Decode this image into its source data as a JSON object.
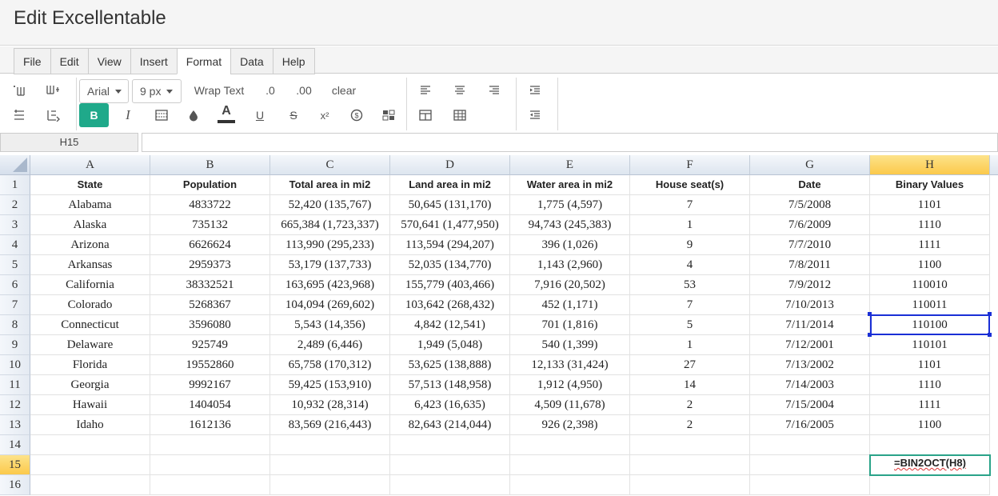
{
  "app": {
    "title": "Edit Excellentable"
  },
  "menu": {
    "items": [
      {
        "label": "File",
        "active": false
      },
      {
        "label": "Edit",
        "active": false
      },
      {
        "label": "View",
        "active": false
      },
      {
        "label": "Insert",
        "active": false
      },
      {
        "label": "Format",
        "active": true
      },
      {
        "label": "Data",
        "active": false
      },
      {
        "label": "Help",
        "active": false
      }
    ]
  },
  "toolbar": {
    "font_family": "Arial",
    "font_size": "9 px",
    "wrap_text": "Wrap Text",
    "decrease_decimal": ".0",
    "increase_decimal": ".00",
    "clear": "clear",
    "bold": "B",
    "italic": "I",
    "underline": "U",
    "strike": "S",
    "superscript": "x²",
    "accent_color": "#1fa98a"
  },
  "formula_bar": {
    "cell_ref": "H15",
    "value": ""
  },
  "sheet": {
    "columns": [
      "A",
      "B",
      "C",
      "D",
      "E",
      "F",
      "G",
      "H"
    ],
    "rows": [
      "1",
      "2",
      "3",
      "4",
      "5",
      "6",
      "7",
      "8",
      "9",
      "10",
      "11",
      "12",
      "13",
      "14",
      "15",
      "16"
    ],
    "selected_column": "H",
    "selected_row": "15",
    "data": [
      [
        "State",
        "Population",
        "Total area in mi2",
        "Land area in mi2",
        "Water area in mi2",
        "House seat(s)",
        "Date",
        "Binary Values"
      ],
      [
        "Alabama",
        "4833722",
        "52,420 (135,767)",
        "50,645 (131,170)",
        "1,775 (4,597)",
        "7",
        "7/5/2008",
        "1101"
      ],
      [
        "Alaska",
        "735132",
        "665,384 (1,723,337)",
        "570,641 (1,477,950)",
        "94,743 (245,383)",
        "1",
        "7/6/2009",
        "1110"
      ],
      [
        "Arizona",
        "6626624",
        "113,990 (295,233)",
        "113,594 (294,207)",
        "396 (1,026)",
        "9",
        "7/7/2010",
        "1111"
      ],
      [
        "Arkansas",
        "2959373",
        "53,179 (137,733)",
        "52,035 (134,770)",
        "1,143 (2,960)",
        "4",
        "7/8/2011",
        "1100"
      ],
      [
        "California",
        "38332521",
        "163,695 (423,968)",
        "155,779 (403,466)",
        "7,916 (20,502)",
        "53",
        "7/9/2012",
        "110010"
      ],
      [
        "Colorado",
        "5268367",
        "104,094 (269,602)",
        "103,642 (268,432)",
        "452 (1,171)",
        "7",
        "7/10/2013",
        "110011"
      ],
      [
        "Connecticut",
        "3596080",
        "5,543 (14,356)",
        "4,842 (12,541)",
        "701 (1,816)",
        "5",
        "7/11/2014",
        "110100"
      ],
      [
        "Delaware",
        "925749",
        "2,489 (6,446)",
        "1,949 (5,048)",
        "540 (1,399)",
        "1",
        "7/12/2001",
        "110101"
      ],
      [
        "Florida",
        "19552860",
        "65,758 (170,312)",
        "53,625 (138,888)",
        "12,133 (31,424)",
        "27",
        "7/13/2002",
        "1101"
      ],
      [
        "Georgia",
        "9992167",
        "59,425 (153,910)",
        "57,513 (148,958)",
        "1,912 (4,950)",
        "14",
        "7/14/2003",
        "1110"
      ],
      [
        "Hawaii",
        "1404054",
        "10,932 (28,314)",
        "6,423 (16,635)",
        "4,509 (11,678)",
        "2",
        "7/15/2004",
        "1111"
      ],
      [
        "Idaho",
        "1612136",
        "83,569 (216,443)",
        "82,643 (214,044)",
        "926 (2,398)",
        "2",
        "7/16/2005",
        "1100"
      ],
      [
        "",
        "",
        "",
        "",
        "",
        "",
        "",
        ""
      ],
      [
        "",
        "",
        "",
        "",
        "",
        "",
        "",
        ""
      ],
      [
        "",
        "",
        "",
        "",
        "",
        "",
        "",
        ""
      ]
    ],
    "editing_cell": {
      "ref": "H15",
      "value": "=BIN2OCT(H8)"
    }
  }
}
